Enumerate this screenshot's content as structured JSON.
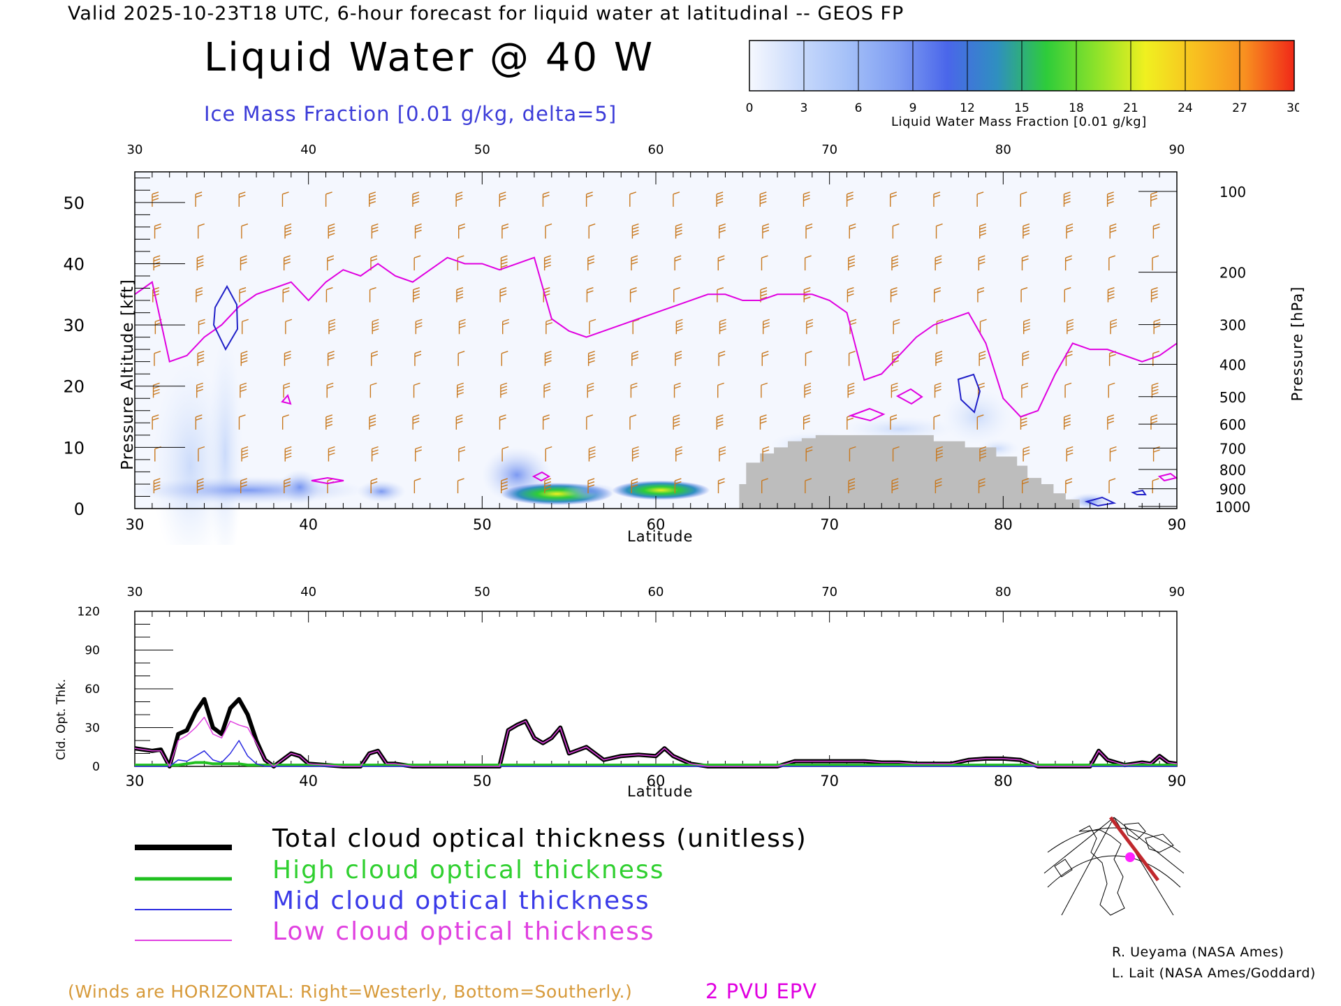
{
  "header": {
    "valid_line": "Valid 2025-10-23T18 UTC, 6-hour forecast for liquid water at latitudinal -- GEOS FP",
    "title": "Liquid Water @ 40 W",
    "subtitle": "Ice Mass Fraction [0.01 g/kg, delta=5]"
  },
  "colorbar": {
    "label": "Liquid Water Mass Fraction [0.01 g/kg]",
    "ticks": [
      "0",
      "3",
      "6",
      "9",
      "12",
      "15",
      "18",
      "21",
      "24",
      "27",
      "30"
    ],
    "colors": [
      "#f6f8fe",
      "#c9dafb",
      "#a4c0f8",
      "#7f9df2",
      "#4a66ea",
      "#2f8fc0",
      "#2ecc3a",
      "#8de22a",
      "#f0f020",
      "#f8c020",
      "#f89020",
      "#f02818"
    ]
  },
  "colors": {
    "epv": "#e000e0",
    "ice_contour": "#2020c8",
    "wind_barb": "#c8781e",
    "terrain": "#bdbdbd",
    "total_line": "#000000",
    "high_line": "#20c020",
    "mid_line": "#2a2ae0",
    "low_line": "#e040e0"
  },
  "top_chart": {
    "ylabel_left": "Pressure Altitude [kft]",
    "ylabel_right": "Pressure [hPa]",
    "xlabel": "Latitude",
    "x_ticks": [
      "30",
      "40",
      "50",
      "60",
      "70",
      "80",
      "90"
    ],
    "y_ticks": [
      "0",
      "10",
      "20",
      "30",
      "40",
      "50"
    ],
    "pressure_ticks": [
      "100",
      "200",
      "300",
      "400",
      "500",
      "600",
      "700",
      "800",
      "900",
      "1000"
    ]
  },
  "bottom_chart": {
    "ylabel": "Cld. Opt. Thk.",
    "xlabel": "Latitude",
    "x_ticks": [
      "30",
      "40",
      "50",
      "60",
      "70",
      "80",
      "90"
    ],
    "y_ticks": [
      "0",
      "30",
      "60",
      "90",
      "120"
    ]
  },
  "legend": {
    "total": "Total cloud optical thickness (unitless)",
    "high": "High cloud optical thickness",
    "mid": "Mid cloud optical thickness",
    "low": "Low cloud optical thickness"
  },
  "credits": {
    "line1": "R. Ueyama (NASA Ames)",
    "line2": "L. Lait (NASA Ames/Goddard)"
  },
  "footer": {
    "winds_note": "(Winds are HORIZONTAL: Right=Westerly, Bottom=Southerly.)",
    "pvu_note": "2 PVU EPV"
  },
  "chart_data": [
    {
      "type": "heatmap",
      "title": "Liquid Water @ 40 W",
      "xlabel": "Latitude",
      "ylabel": "Pressure Altitude [kft]",
      "xlim": [
        30,
        90
      ],
      "ylim": [
        0,
        55
      ],
      "epv_2pvu_altitude": {
        "lat": [
          30,
          31,
          32,
          33,
          34,
          35,
          36,
          37,
          38,
          39,
          40,
          41,
          42,
          43,
          44,
          45,
          46,
          47,
          48,
          49,
          50,
          51,
          52,
          53,
          54,
          55,
          56,
          57,
          58,
          59,
          60,
          61,
          62,
          63,
          64,
          65,
          66,
          67,
          68,
          69,
          70,
          71,
          72,
          73,
          74,
          75,
          76,
          77,
          78,
          79,
          80,
          81,
          82,
          83,
          84,
          85,
          86,
          87,
          88,
          89,
          90
        ],
        "kft": [
          35,
          37,
          24,
          25,
          28,
          30,
          33,
          35,
          36,
          37,
          34,
          37,
          39,
          38,
          40,
          38,
          37,
          39,
          41,
          40,
          40,
          39,
          40,
          41,
          31,
          29,
          28,
          29,
          30,
          31,
          32,
          33,
          34,
          35,
          35,
          34,
          34,
          35,
          35,
          35,
          34,
          32,
          21,
          22,
          25,
          28,
          30,
          31,
          32,
          27,
          18,
          15,
          16,
          22,
          27,
          26,
          26,
          25,
          24,
          25,
          27
        ]
      },
      "terrain_kft": {
        "lat": [
          64.8,
          65.2,
          66.0,
          66.8,
          67.6,
          68.4,
          69.2,
          70.0,
          76.0,
          77.8,
          79.6,
          80.8,
          81.4,
          82.2,
          82.9,
          83.6,
          84.4
        ],
        "kft": [
          4,
          7.5,
          9,
          10,
          11,
          11.5,
          12,
          12,
          11,
          10,
          8.5,
          7,
          5,
          4,
          2.5,
          1.5,
          0
        ]
      }
    },
    {
      "type": "line",
      "xlabel": "Latitude",
      "ylabel": "Cld. Opt. Thk.",
      "xlim": [
        30,
        90
      ],
      "ylim": [
        0,
        120
      ],
      "x": [
        30,
        31,
        31.5,
        32,
        32.5,
        33,
        33.5,
        34,
        34.5,
        35,
        35.5,
        36,
        36.5,
        37,
        37.5,
        38,
        39,
        39.5,
        40,
        41,
        42,
        43,
        43.5,
        44,
        44.5,
        45,
        46,
        47,
        48,
        49,
        50,
        51,
        51.5,
        52,
        52.5,
        53,
        53.5,
        54,
        54.5,
        55,
        56,
        57,
        58,
        59,
        60,
        60.5,
        61,
        62,
        63,
        64,
        65,
        66,
        67,
        68,
        69,
        70,
        71,
        72,
        73,
        74,
        75,
        76,
        77,
        78,
        79,
        80,
        81,
        82,
        83,
        84,
        85,
        85.5,
        86,
        86.5,
        87,
        88,
        88.5,
        89,
        89.5,
        90
      ],
      "series": [
        {
          "name": "Total cloud optical thickness (unitless)",
          "values": [
            14,
            12,
            13,
            0,
            25,
            28,
            42,
            52,
            30,
            25,
            45,
            52,
            40,
            20,
            5,
            0,
            10,
            8,
            2,
            1,
            0,
            0,
            10,
            12,
            2,
            2,
            0,
            0,
            0,
            0,
            0,
            0,
            28,
            32,
            35,
            22,
            18,
            22,
            30,
            10,
            15,
            5,
            8,
            9,
            8,
            14,
            8,
            2,
            0,
            0,
            0,
            0,
            0,
            4,
            4,
            4,
            4,
            4,
            3,
            3,
            2,
            2,
            2,
            5,
            6,
            6,
            5,
            0,
            0,
            0,
            0,
            12,
            5,
            3,
            1,
            3,
            2,
            8,
            3,
            2
          ]
        },
        {
          "name": "High cloud optical thickness",
          "values": [
            1,
            1,
            1,
            1,
            1,
            2,
            3,
            3,
            2,
            2,
            2,
            2,
            1,
            1,
            1,
            1,
            1,
            1,
            1,
            1,
            1,
            1,
            1,
            1,
            1,
            1,
            1,
            1,
            1,
            1,
            1,
            1,
            1,
            1,
            1,
            1,
            1,
            1,
            1,
            1,
            1,
            1,
            1,
            1,
            1,
            1,
            1,
            1,
            1,
            1,
            1,
            1,
            1,
            1,
            1,
            1,
            1,
            1,
            1,
            1,
            1,
            1,
            1,
            1,
            1,
            1,
            1,
            1,
            1,
            1,
            1,
            1,
            1,
            1,
            1,
            1,
            1,
            1,
            1,
            1
          ]
        },
        {
          "name": "Mid cloud optical thickness",
          "values": [
            0,
            0,
            0,
            0,
            5,
            4,
            8,
            12,
            5,
            3,
            10,
            20,
            8,
            2,
            0,
            0,
            0,
            0,
            0,
            0,
            0,
            0,
            0,
            0,
            0,
            0,
            0,
            0,
            0,
            0,
            0,
            0,
            0,
            0,
            0,
            0,
            0,
            0,
            0,
            0,
            0,
            0,
            0,
            0,
            0,
            0,
            0,
            0,
            0,
            0,
            0,
            0,
            0,
            0,
            0,
            0,
            0,
            0,
            0,
            0,
            0,
            0,
            0,
            0,
            0,
            0,
            0,
            0,
            0,
            0,
            0,
            0,
            0,
            0,
            0,
            0,
            0,
            0,
            0,
            0
          ]
        },
        {
          "name": "Low cloud optical thickness",
          "values": [
            14,
            12,
            12,
            0,
            20,
            24,
            30,
            38,
            25,
            22,
            35,
            32,
            30,
            18,
            5,
            0,
            10,
            8,
            2,
            1,
            0,
            0,
            10,
            12,
            2,
            2,
            0,
            0,
            0,
            0,
            0,
            0,
            28,
            32,
            35,
            22,
            18,
            22,
            30,
            10,
            15,
            5,
            8,
            9,
            8,
            14,
            8,
            2,
            0,
            0,
            0,
            0,
            0,
            4,
            4,
            4,
            4,
            4,
            3,
            3,
            2,
            2,
            2,
            5,
            6,
            6,
            5,
            0,
            0,
            0,
            0,
            12,
            5,
            3,
            1,
            3,
            2,
            8,
            3,
            2
          ]
        }
      ]
    }
  ]
}
